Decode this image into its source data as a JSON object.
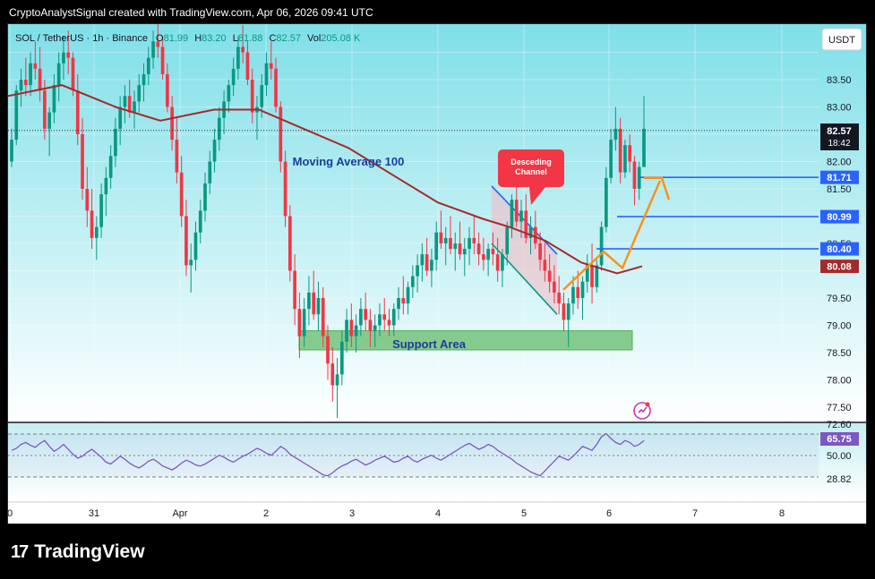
{
  "caption": "CryptoAnalystSignal created with TradingView.com, Apr 06, 2026 09:41 UTC",
  "brand": {
    "logo": "17",
    "name": "TradingView"
  },
  "currency_button": "USDT",
  "symbol_header": {
    "symbol": "SOL / TetherUS · 1h · Binance",
    "o_label": "O",
    "o_value": "81.99",
    "h_label": "H",
    "h_value": "83.20",
    "l_label": "L",
    "l_value": "81.88",
    "c_label": "C",
    "c_value": "82.57",
    "vol_label": "Vol",
    "vol_value": "205.08 K"
  },
  "annotations": {
    "ma_label": "Moving Average 100",
    "channel_label_1": "Desceding",
    "channel_label_2": "Channel",
    "support_label": "Support Area"
  },
  "price_badges": {
    "current": "82.57",
    "countdown": "18:42",
    "level_1": "81.71",
    "level_2": "80.99",
    "level_3": "80.40",
    "ma_value": "80.08"
  },
  "rsi_badges": {
    "rsi_value": "65.75",
    "upper": "72.60",
    "mid": "50.00",
    "lower": "28.82"
  },
  "colors": {
    "bull": "#089981",
    "bear": "#f23645",
    "ma": "#a52a2a",
    "level": "#2962ff",
    "arrow": "#f7931a",
    "rsi": "#7e57c2",
    "support": "#66bb6a",
    "bg_top": "#7fdfe8",
    "bg_bottom": "#ffffff"
  },
  "chart_data": {
    "type": "candlestick",
    "y_ticks": [
      83.5,
      83.0,
      82.0,
      81.5,
      80.5,
      79.5,
      79.0,
      78.5,
      78.0,
      77.5
    ],
    "x_ticks": [
      "0",
      "31",
      "Apr",
      "2",
      "3",
      "4",
      "5",
      "6",
      "7",
      "8"
    ],
    "price_levels": [
      81.71,
      80.99,
      80.4
    ],
    "ma100_current": 80.08,
    "last_close": 82.57,
    "rsi": {
      "current": 65.75,
      "levels": [
        72.6,
        50.0,
        28.82
      ],
      "values": [
        56,
        58,
        62,
        64,
        61,
        59,
        63,
        66,
        60,
        55,
        58,
        62,
        57,
        52,
        48,
        50,
        54,
        57,
        53,
        49,
        44,
        42,
        46,
        50,
        47,
        43,
        40,
        38,
        41,
        45,
        47,
        44,
        40,
        38,
        36,
        39,
        43,
        46,
        44,
        41,
        40,
        42,
        45,
        48,
        51,
        49,
        46,
        44,
        47,
        50,
        52,
        55,
        58,
        56,
        53,
        51,
        55,
        60,
        57,
        52,
        49,
        46,
        43,
        40,
        37,
        34,
        31,
        30,
        33,
        37,
        40,
        42,
        45,
        47,
        44,
        41,
        43,
        46,
        48,
        50,
        47,
        44,
        45,
        48,
        50,
        46,
        44,
        47,
        49,
        51,
        48,
        46,
        49,
        52,
        55,
        58,
        61,
        63,
        60,
        57,
        59,
        62,
        60,
        56,
        53,
        50,
        47,
        43,
        40,
        37,
        34,
        32,
        30,
        35,
        40,
        45,
        50,
        48,
        46,
        50,
        55,
        60,
        58,
        56,
        62,
        70,
        73,
        68,
        64,
        62,
        66,
        64,
        60,
        62,
        66
      ]
    },
    "candles": [
      [
        82.0,
        82.6,
        81.9,
        82.4
      ],
      [
        82.4,
        83.4,
        82.3,
        83.3
      ],
      [
        83.3,
        83.7,
        83.0,
        83.5
      ],
      [
        83.5,
        83.9,
        83.2,
        83.4
      ],
      [
        83.4,
        84.0,
        83.2,
        83.8
      ],
      [
        83.8,
        84.2,
        83.5,
        83.7
      ],
      [
        83.7,
        84.1,
        83.1,
        83.3
      ],
      [
        83.3,
        83.5,
        82.4,
        82.6
      ],
      [
        82.6,
        83.0,
        82.1,
        82.9
      ],
      [
        82.9,
        83.6,
        82.7,
        83.4
      ],
      [
        83.4,
        84.0,
        83.1,
        83.8
      ],
      [
        83.8,
        84.3,
        83.5,
        84.0
      ],
      [
        84.0,
        84.4,
        83.6,
        83.9
      ],
      [
        83.9,
        84.0,
        83.2,
        83.3
      ],
      [
        83.3,
        83.6,
        82.3,
        82.5
      ],
      [
        82.5,
        82.8,
        81.3,
        81.5
      ],
      [
        81.5,
        81.9,
        80.8,
        81.1
      ],
      [
        81.1,
        81.5,
        80.4,
        80.6
      ],
      [
        80.6,
        81.0,
        80.2,
        80.8
      ],
      [
        80.8,
        81.6,
        80.6,
        81.4
      ],
      [
        81.4,
        81.9,
        81.0,
        81.7
      ],
      [
        81.7,
        82.3,
        81.5,
        82.1
      ],
      [
        82.1,
        82.8,
        81.9,
        82.6
      ],
      [
        82.6,
        83.2,
        82.3,
        83.0
      ],
      [
        83.0,
        83.4,
        82.7,
        83.2
      ],
      [
        83.2,
        83.5,
        82.8,
        82.9
      ],
      [
        82.9,
        83.3,
        82.6,
        83.1
      ],
      [
        83.1,
        83.6,
        82.9,
        83.4
      ],
      [
        83.4,
        83.8,
        83.1,
        83.6
      ],
      [
        83.6,
        84.1,
        83.4,
        83.9
      ],
      [
        83.9,
        84.4,
        83.7,
        84.2
      ],
      [
        84.2,
        84.6,
        83.9,
        84.1
      ],
      [
        84.1,
        84.3,
        83.5,
        83.6
      ],
      [
        83.6,
        83.8,
        82.9,
        83.0
      ],
      [
        83.0,
        83.2,
        82.2,
        82.4
      ],
      [
        82.4,
        82.8,
        81.6,
        81.8
      ],
      [
        81.8,
        82.1,
        80.8,
        81.0
      ],
      [
        81.0,
        81.3,
        79.9,
        80.1
      ],
      [
        80.1,
        80.5,
        79.6,
        80.2
      ],
      [
        80.2,
        80.9,
        80.0,
        80.7
      ],
      [
        80.7,
        81.3,
        80.5,
        81.1
      ],
      [
        81.1,
        81.8,
        80.9,
        81.6
      ],
      [
        81.6,
        82.2,
        81.4,
        82.0
      ],
      [
        82.0,
        82.6,
        81.8,
        82.4
      ],
      [
        82.4,
        83.0,
        82.2,
        82.8
      ],
      [
        82.8,
        83.3,
        82.5,
        83.1
      ],
      [
        83.1,
        83.5,
        82.9,
        83.4
      ],
      [
        83.4,
        83.9,
        83.2,
        83.7
      ],
      [
        83.7,
        84.3,
        83.5,
        84.1
      ],
      [
        84.1,
        84.5,
        83.8,
        84.0
      ],
      [
        84.0,
        84.2,
        83.4,
        83.5
      ],
      [
        83.5,
        83.7,
        82.7,
        82.9
      ],
      [
        82.9,
        83.2,
        82.4,
        83.0
      ],
      [
        83.0,
        83.6,
        82.8,
        83.4
      ],
      [
        83.4,
        84.0,
        83.2,
        83.8
      ],
      [
        83.8,
        84.2,
        83.5,
        83.7
      ],
      [
        83.7,
        83.9,
        82.9,
        83.0
      ],
      [
        83.0,
        83.1,
        81.8,
        82.0
      ],
      [
        82.0,
        82.2,
        80.8,
        81.0
      ],
      [
        81.0,
        81.2,
        79.8,
        80.0
      ],
      [
        80.0,
        80.3,
        79.0,
        79.3
      ],
      [
        79.3,
        79.6,
        78.4,
        78.8
      ],
      [
        78.8,
        79.5,
        78.6,
        79.3
      ],
      [
        79.3,
        79.9,
        79.0,
        79.6
      ],
      [
        79.6,
        80.0,
        79.1,
        79.2
      ],
      [
        79.2,
        79.8,
        78.9,
        79.5
      ],
      [
        79.5,
        79.7,
        78.6,
        78.8
      ],
      [
        78.8,
        79.0,
        78.0,
        78.3
      ],
      [
        78.3,
        78.6,
        77.6,
        77.9
      ],
      [
        77.9,
        78.4,
        77.3,
        78.1
      ],
      [
        78.1,
        78.9,
        77.9,
        78.7
      ],
      [
        78.7,
        79.3,
        78.5,
        79.1
      ],
      [
        79.1,
        79.4,
        78.6,
        78.8
      ],
      [
        78.8,
        79.2,
        78.5,
        79.0
      ],
      [
        79.0,
        79.5,
        78.8,
        79.3
      ],
      [
        79.3,
        79.6,
        78.9,
        79.1
      ],
      [
        79.1,
        79.3,
        78.6,
        78.9
      ],
      [
        78.9,
        79.2,
        78.6,
        79.0
      ],
      [
        79.0,
        79.4,
        78.8,
        79.2
      ],
      [
        79.2,
        79.5,
        78.9,
        79.1
      ],
      [
        79.1,
        79.3,
        78.8,
        79.0
      ],
      [
        79.0,
        79.4,
        78.8,
        79.3
      ],
      [
        79.3,
        79.7,
        79.1,
        79.5
      ],
      [
        79.5,
        79.9,
        79.2,
        79.4
      ],
      [
        79.4,
        79.8,
        79.2,
        79.7
      ],
      [
        79.7,
        80.1,
        79.5,
        79.9
      ],
      [
        79.9,
        80.3,
        79.6,
        80.1
      ],
      [
        80.1,
        80.5,
        79.8,
        80.3
      ],
      [
        80.3,
        80.6,
        79.9,
        80.0
      ],
      [
        80.0,
        80.4,
        79.7,
        80.2
      ],
      [
        80.2,
        80.9,
        80.0,
        80.7
      ],
      [
        80.7,
        81.1,
        80.4,
        80.5
      ],
      [
        80.5,
        80.8,
        80.1,
        80.6
      ],
      [
        80.6,
        81.0,
        80.3,
        80.4
      ],
      [
        80.4,
        80.7,
        80.0,
        80.5
      ],
      [
        80.5,
        80.9,
        80.2,
        80.3
      ],
      [
        80.3,
        80.6,
        79.9,
        80.4
      ],
      [
        80.4,
        80.8,
        80.1,
        80.6
      ],
      [
        80.6,
        81.0,
        80.3,
        80.5
      ],
      [
        80.5,
        80.7,
        80.1,
        80.3
      ],
      [
        80.3,
        80.6,
        80.0,
        80.2
      ],
      [
        80.2,
        80.5,
        79.9,
        80.4
      ],
      [
        80.4,
        80.7,
        80.1,
        80.3
      ],
      [
        80.3,
        80.6,
        79.8,
        80.0
      ],
      [
        80.0,
        80.4,
        79.7,
        80.3
      ],
      [
        80.3,
        80.9,
        80.1,
        80.8
      ],
      [
        80.8,
        81.4,
        80.6,
        81.3
      ],
      [
        81.3,
        81.6,
        80.8,
        80.9
      ],
      [
        80.9,
        81.3,
        80.6,
        81.1
      ],
      [
        81.1,
        81.4,
        80.5,
        80.6
      ],
      [
        80.6,
        81.0,
        80.3,
        80.8
      ],
      [
        80.8,
        81.1,
        80.4,
        80.5
      ],
      [
        80.5,
        80.7,
        80.0,
        80.2
      ],
      [
        80.2,
        80.5,
        79.8,
        80.0
      ],
      [
        80.0,
        80.3,
        79.6,
        79.8
      ],
      [
        79.8,
        80.1,
        79.4,
        79.6
      ],
      [
        79.6,
        79.9,
        79.2,
        79.4
      ],
      [
        79.4,
        79.6,
        78.9,
        79.1
      ],
      [
        79.1,
        79.5,
        78.6,
        79.4
      ],
      [
        79.4,
        79.9,
        79.2,
        79.7
      ],
      [
        79.7,
        80.0,
        79.3,
        79.5
      ],
      [
        79.5,
        79.9,
        79.1,
        79.8
      ],
      [
        79.8,
        80.3,
        79.6,
        80.1
      ],
      [
        80.1,
        80.5,
        79.4,
        79.7
      ],
      [
        79.7,
        80.2,
        79.6,
        80.1
      ],
      [
        80.1,
        80.9,
        80.0,
        80.8
      ],
      [
        80.8,
        81.9,
        80.7,
        81.7
      ],
      [
        81.7,
        82.6,
        81.6,
        82.4
      ],
      [
        82.4,
        83.0,
        82.2,
        82.6
      ],
      [
        82.6,
        82.8,
        81.6,
        81.8
      ],
      [
        81.8,
        82.4,
        81.7,
        82.3
      ],
      [
        82.3,
        82.5,
        81.8,
        82.0
      ],
      [
        82.0,
        82.1,
        81.2,
        81.5
      ],
      [
        81.5,
        82.0,
        81.3,
        81.9
      ],
      [
        81.9,
        83.2,
        81.9,
        82.6
      ]
    ]
  }
}
